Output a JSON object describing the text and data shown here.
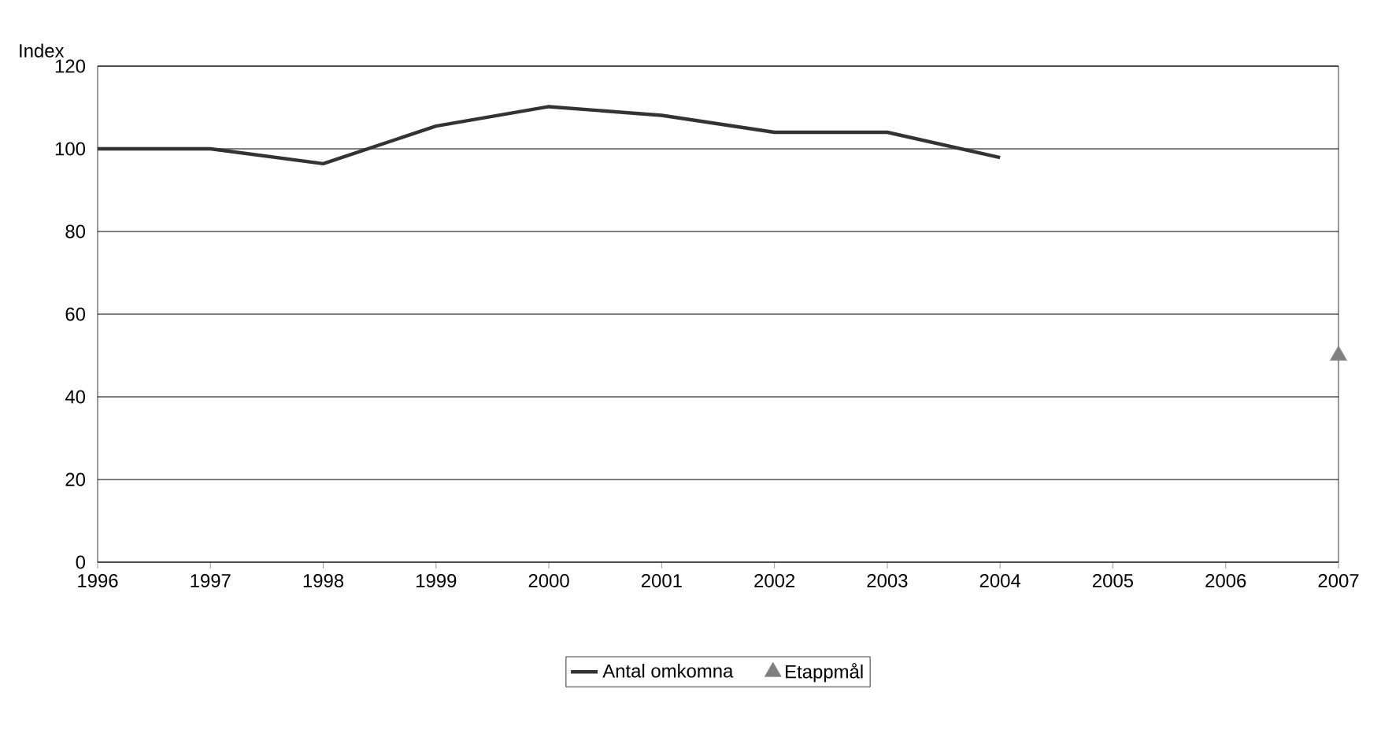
{
  "chart_data": {
    "type": "line",
    "ylabel": "Index",
    "x": [
      1996,
      1997,
      1998,
      1999,
      2000,
      2001,
      2002,
      2003,
      2004
    ],
    "series": [
      {
        "name": "Antal omkomna",
        "color": "#333333",
        "values": [
          100,
          100,
          96.4,
          105.5,
          110.2,
          108.1,
          104,
          104,
          97.9
        ],
        "marker": "none",
        "line_style": "solid"
      },
      {
        "name": "Etappmål",
        "type": "scatter",
        "color": "#808080",
        "x": [
          2007
        ],
        "values": [
          50
        ],
        "marker": "triangle"
      }
    ],
    "xlim": [
      1996,
      2007
    ],
    "xticks": [
      1996,
      1997,
      1998,
      1999,
      2000,
      2001,
      2002,
      2003,
      2004,
      2005,
      2006,
      2007
    ],
    "ylim": [
      0,
      120
    ],
    "yticks": [
      0,
      20,
      40,
      60,
      80,
      100,
      120
    ],
    "grid": "y",
    "legend": "bottom"
  }
}
